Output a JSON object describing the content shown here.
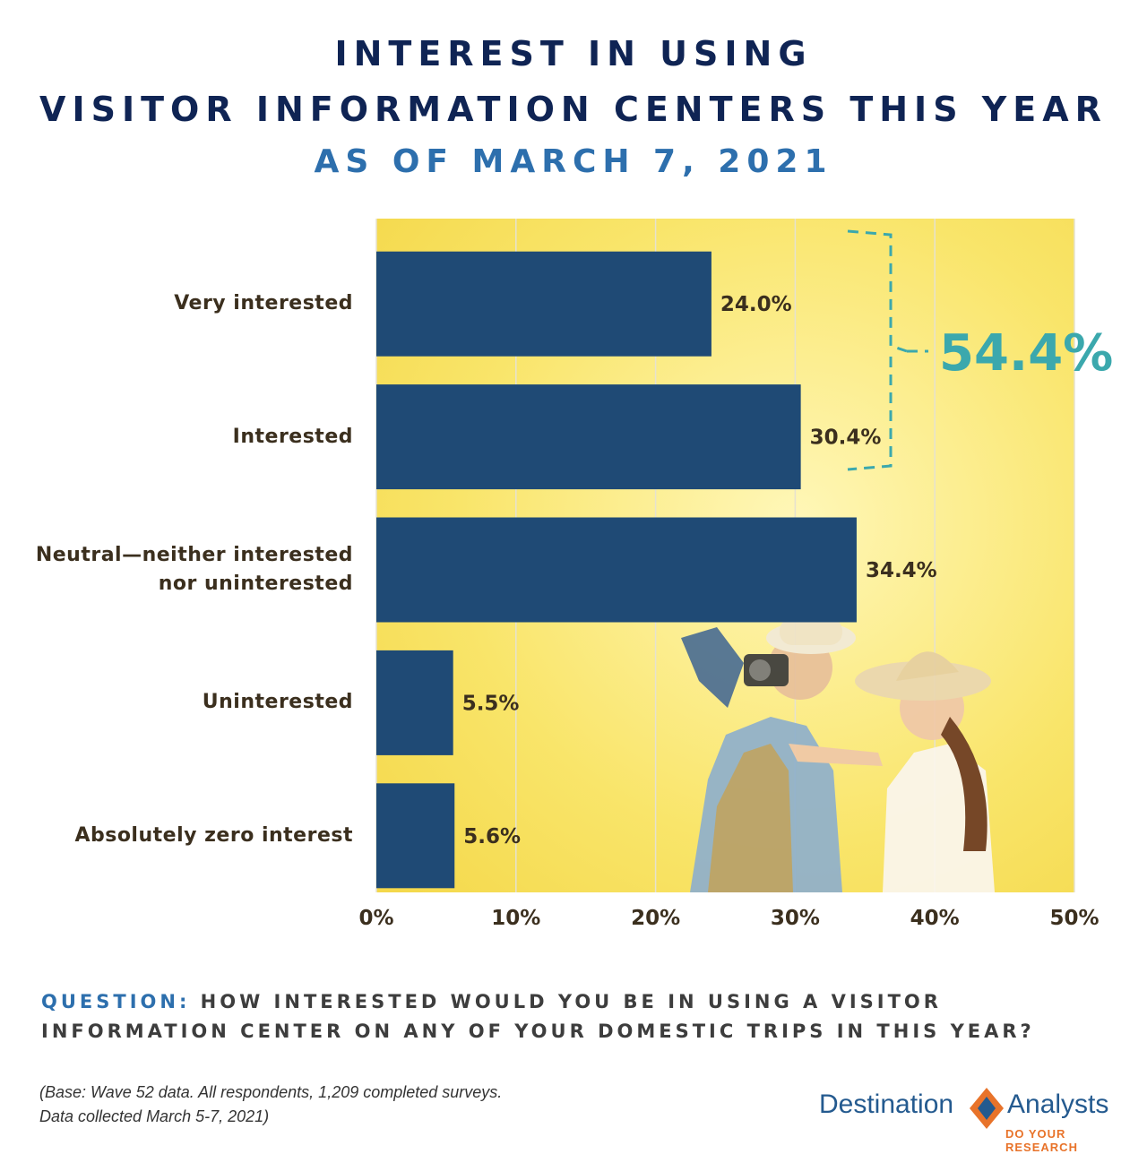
{
  "header": {
    "title_line1": "INTEREST IN USING",
    "title_line2": "VISITOR INFORMATION CENTERS THIS YEAR",
    "subtitle": "AS OF MARCH 7, 2021"
  },
  "chart_data": {
    "type": "bar",
    "orientation": "horizontal",
    "categories": [
      "Very interested",
      "Interested",
      "Neutral—neither interested nor uninterested",
      "Uninterested",
      "Absolutely zero interest"
    ],
    "category_lines": [
      [
        "Very interested"
      ],
      [
        "Interested"
      ],
      [
        "Neutral—neither interested",
        "nor uninterested"
      ],
      [
        "Uninterested"
      ],
      [
        "Absolutely zero interest"
      ]
    ],
    "values": [
      24.0,
      30.4,
      34.4,
      5.5,
      5.6
    ],
    "value_labels": [
      "24.0%",
      "30.4%",
      "34.4%",
      "5.5%",
      "5.6%"
    ],
    "xlim": [
      0,
      50
    ],
    "ticks": [
      "0%",
      "10%",
      "20%",
      "30%",
      "40%",
      "50%"
    ],
    "grid": true,
    "bar_color": "#1f4a75",
    "annotation": {
      "label": "54.4%",
      "spans": [
        "Very interested",
        "Interested"
      ],
      "color": "#3ba8ad"
    }
  },
  "footer": {
    "question_prefix": "QUESTION:",
    "question_text": "HOW INTERESTED WOULD YOU BE IN USING A VISITOR INFORMATION CENTER ON ANY OF YOUR DOMESTIC TRIPS IN THIS YEAR?",
    "note_line1": "(Base: Wave 52 data. All respondents, 1,209 completed surveys.",
    "note_line2": "Data collected March 5-7, 2021)"
  },
  "logo": {
    "name_left": "Destination",
    "name_right": "Analysts",
    "tagline": "DO YOUR RESEARCH"
  },
  "colors": {
    "title": "#0f2454",
    "subtitle": "#2d6fad",
    "plot_background": "#f9e56a",
    "logo_orange": "#e8732a",
    "logo_blue": "#245a8f"
  }
}
